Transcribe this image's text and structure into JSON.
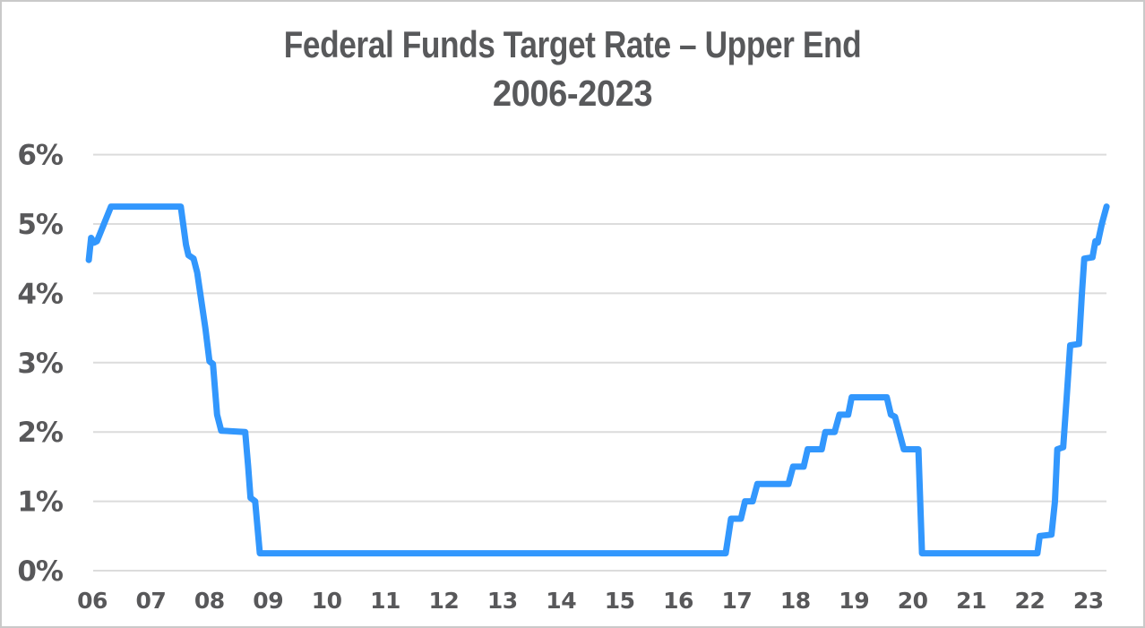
{
  "page": {
    "title": "Federal Funds Target Rate – Upper End",
    "subtitle": "2006-2023"
  },
  "chart_data": {
    "type": "line",
    "title": "Federal Funds Target Rate – Upper End",
    "subtitle": "2006-2023",
    "xlabel": "",
    "ylabel": "",
    "unit": "%",
    "grid": true,
    "legend": false,
    "xlim": [
      2005.9,
      2023.5
    ],
    "ylim": [
      0,
      6.4
    ],
    "x_ticks": [
      {
        "value": 2006,
        "label": "06"
      },
      {
        "value": 2007,
        "label": "07"
      },
      {
        "value": 2008,
        "label": "08"
      },
      {
        "value": 2009,
        "label": "09"
      },
      {
        "value": 2010,
        "label": "10"
      },
      {
        "value": 2011,
        "label": "11"
      },
      {
        "value": 2012,
        "label": "12"
      },
      {
        "value": 2013,
        "label": "13"
      },
      {
        "value": 2014,
        "label": "14"
      },
      {
        "value": 2015,
        "label": "15"
      },
      {
        "value": 2016,
        "label": "16"
      },
      {
        "value": 2017,
        "label": "17"
      },
      {
        "value": 2018,
        "label": "18"
      },
      {
        "value": 2019,
        "label": "19"
      },
      {
        "value": 2020,
        "label": "20"
      },
      {
        "value": 2021,
        "label": "21"
      },
      {
        "value": 2022,
        "label": "22"
      },
      {
        "value": 2023,
        "label": "23"
      }
    ],
    "y_ticks": [
      {
        "value": 0,
        "label": "0%"
      },
      {
        "value": 1,
        "label": "1%"
      },
      {
        "value": 2,
        "label": "2%"
      },
      {
        "value": 3,
        "label": "3%"
      },
      {
        "value": 4,
        "label": "4%"
      },
      {
        "value": 5,
        "label": "5%"
      },
      {
        "value": 6,
        "label": "6%"
      }
    ],
    "series": [
      {
        "name": "Federal Funds Target Rate – Upper End (%)",
        "points": [
          [
            2005.94,
            4.48
          ],
          [
            2005.98,
            4.8
          ],
          [
            2006.03,
            4.73
          ],
          [
            2006.08,
            4.75
          ],
          [
            2006.32,
            5.25
          ],
          [
            2007.51,
            5.25
          ],
          [
            2007.6,
            4.7
          ],
          [
            2007.64,
            4.55
          ],
          [
            2007.73,
            4.5
          ],
          [
            2007.79,
            4.3
          ],
          [
            2007.93,
            3.5
          ],
          [
            2008.0,
            3.02
          ],
          [
            2008.06,
            2.98
          ],
          [
            2008.13,
            2.25
          ],
          [
            2008.2,
            2.02
          ],
          [
            2008.61,
            2.0
          ],
          [
            2008.66,
            1.5
          ],
          [
            2008.7,
            1.05
          ],
          [
            2008.78,
            1.0
          ],
          [
            2008.86,
            0.25
          ],
          [
            2016.81,
            0.25
          ],
          [
            2016.86,
            0.52
          ],
          [
            2016.9,
            0.75
          ],
          [
            2017.07,
            0.75
          ],
          [
            2017.14,
            1.0
          ],
          [
            2017.27,
            1.0
          ],
          [
            2017.35,
            1.25
          ],
          [
            2017.88,
            1.25
          ],
          [
            2017.96,
            1.5
          ],
          [
            2018.14,
            1.5
          ],
          [
            2018.21,
            1.75
          ],
          [
            2018.45,
            1.75
          ],
          [
            2018.51,
            2.0
          ],
          [
            2018.67,
            2.0
          ],
          [
            2018.75,
            2.25
          ],
          [
            2018.9,
            2.25
          ],
          [
            2018.96,
            2.5
          ],
          [
            2019.56,
            2.5
          ],
          [
            2019.63,
            2.25
          ],
          [
            2019.7,
            2.22
          ],
          [
            2019.77,
            2.0
          ],
          [
            2019.85,
            1.75
          ],
          [
            2020.1,
            1.75
          ],
          [
            2020.16,
            0.25
          ],
          [
            2022.13,
            0.25
          ],
          [
            2022.17,
            0.5
          ],
          [
            2022.37,
            0.52
          ],
          [
            2022.43,
            1.0
          ],
          [
            2022.47,
            1.75
          ],
          [
            2022.57,
            1.78
          ],
          [
            2022.63,
            2.5
          ],
          [
            2022.69,
            3.25
          ],
          [
            2022.84,
            3.27
          ],
          [
            2022.89,
            4.0
          ],
          [
            2022.93,
            4.5
          ],
          [
            2023.07,
            4.52
          ],
          [
            2023.12,
            4.75
          ],
          [
            2023.16,
            4.73
          ],
          [
            2023.23,
            5.0
          ],
          [
            2023.31,
            5.25
          ]
        ]
      }
    ]
  },
  "colors": {
    "line": "#3297fd",
    "grid": "#dcdcdc",
    "tick_label": "#58585a",
    "title": "#58595b",
    "background": "#ffffff",
    "frame_border": "#c9c9c9"
  }
}
